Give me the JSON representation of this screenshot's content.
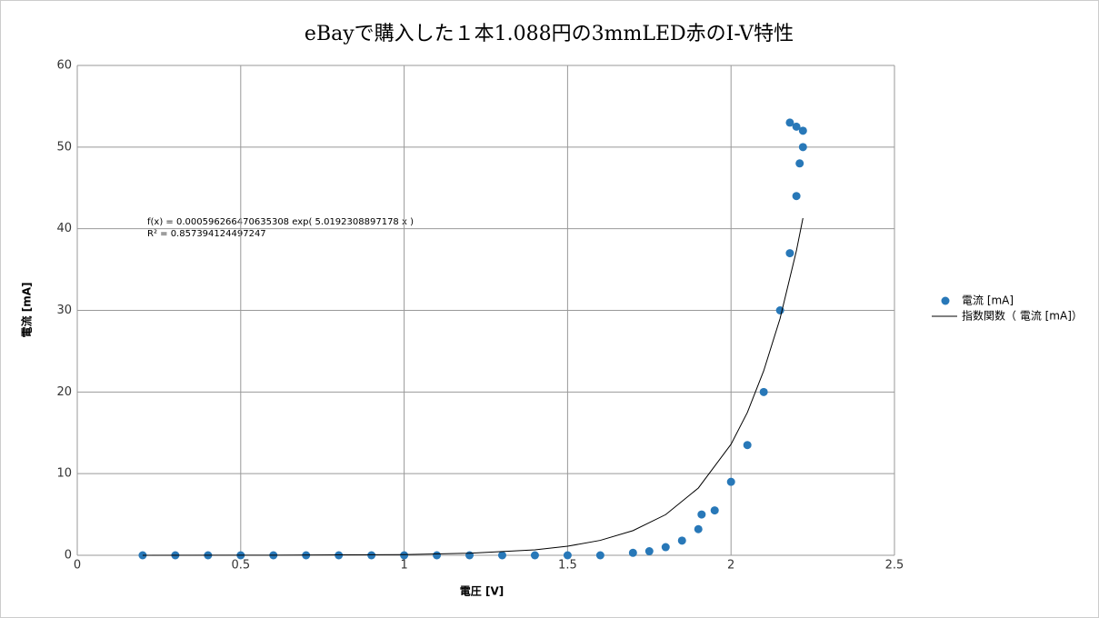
{
  "chart_data": {
    "type": "scatter",
    "title": "eBayで購入した１本1.088円の3mmLED赤のI-V特性",
    "x_label": "電圧 [V]",
    "y_label": "電流 [mA]",
    "xlim": [
      0,
      2.5
    ],
    "xticks": [
      0,
      0.5,
      1,
      1.5,
      2,
      2.5
    ],
    "ylim": [
      0,
      60
    ],
    "yticks": [
      0,
      10,
      20,
      30,
      40,
      50,
      60
    ],
    "grid": true,
    "annotations": [
      "f(x) = 0.000596266470635308 exp( 5.0192308897178 x )",
      "R² = 0.857394124497247"
    ],
    "series": [
      {
        "name": "電流 [mA]",
        "color": "#2878b8",
        "x": [
          0.2,
          0.3,
          0.4,
          0.5,
          0.6,
          0.7,
          0.8,
          0.9,
          1.0,
          1.1,
          1.2,
          1.3,
          1.4,
          1.5,
          1.6,
          1.7,
          1.75,
          1.8,
          1.85,
          1.9,
          1.91,
          1.95,
          2.0,
          2.05,
          2.1,
          2.15,
          2.18,
          2.2,
          2.21,
          2.22,
          2.22,
          2.2,
          2.18
        ],
        "values": [
          0,
          0,
          0,
          0,
          0,
          0,
          0,
          0,
          0,
          0,
          0,
          0,
          0,
          0,
          0,
          0.3,
          0.5,
          1.0,
          1.8,
          3.2,
          5,
          5.5,
          9,
          13.5,
          20,
          30,
          37,
          44,
          48,
          52,
          50,
          52.5,
          53
        ]
      },
      {
        "name": "指数関数（ 電流 [mA]）",
        "color": "#000000",
        "line": true,
        "x": [
          0.2,
          0.6,
          1.0,
          1.2,
          1.4,
          1.5,
          1.6,
          1.7,
          1.8,
          1.9,
          2.0,
          2.05,
          2.1,
          2.15,
          2.2,
          2.22
        ],
        "values": [
          0.0016,
          0.012,
          0.09,
          0.25,
          0.67,
          1.11,
          1.83,
          3.02,
          4.98,
          8.24,
          13.6,
          17.5,
          22.6,
          29.0,
          37.3,
          41.3
        ]
      }
    ]
  }
}
